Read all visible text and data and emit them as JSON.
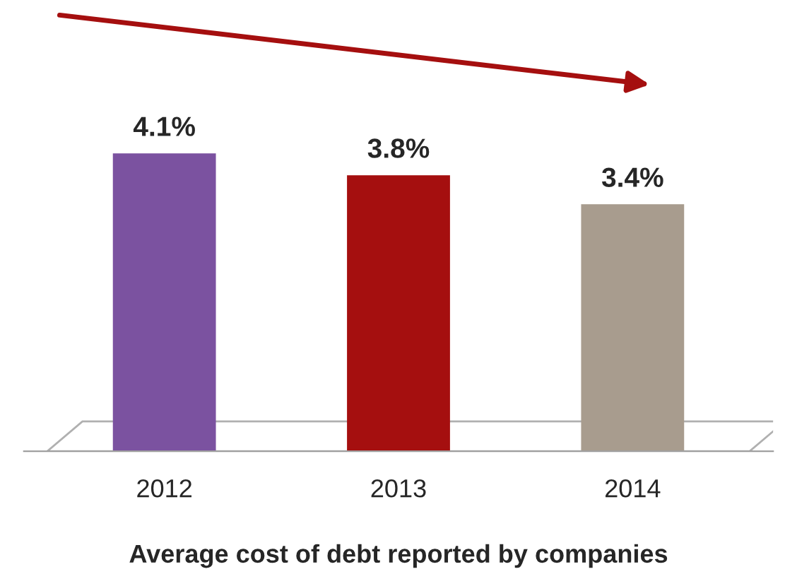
{
  "chart_data": {
    "type": "bar",
    "title": "Average cost of debt reported by companies",
    "categories": [
      "2012",
      "2013",
      "2014"
    ],
    "values": [
      4.1,
      3.8,
      3.4
    ],
    "value_labels": [
      "4.1%",
      "3.8%",
      "3.4%"
    ],
    "colors": [
      "#7b52a0",
      "#a50f0f",
      "#a89c8e"
    ],
    "grid": false,
    "legend": false
  }
}
